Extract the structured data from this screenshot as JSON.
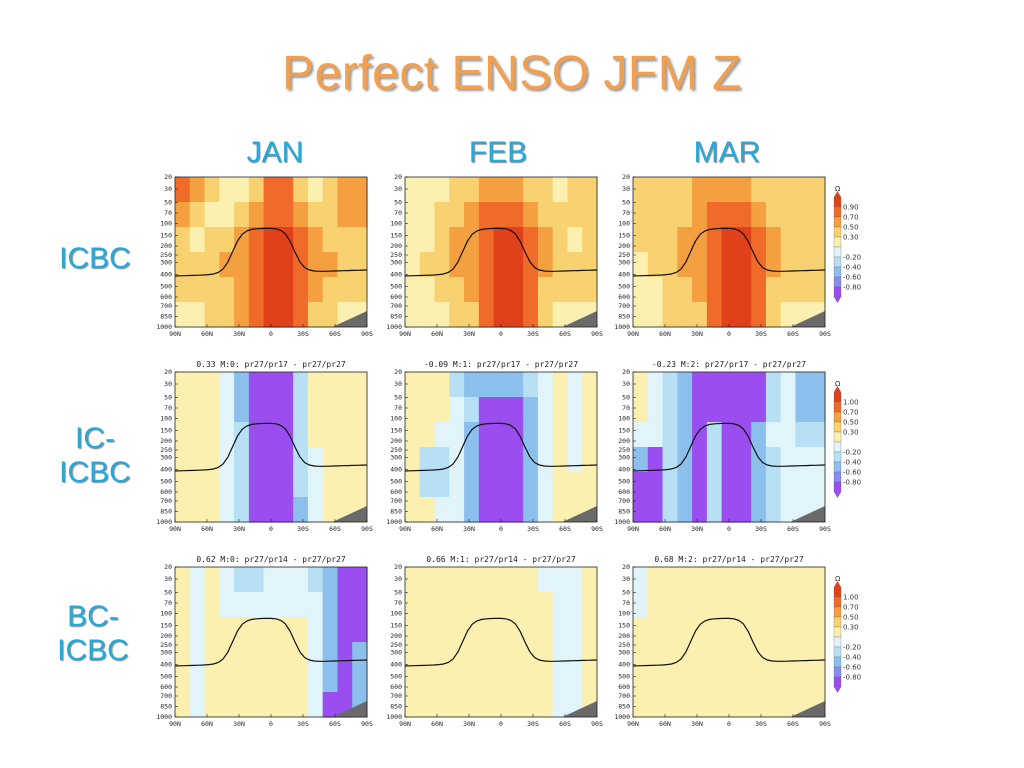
{
  "slide": {
    "title": "Perfect ENSO JFM Z",
    "title_color": "#f0a050",
    "label_color": "#22aadd"
  },
  "columns": [
    "JAN",
    "FEB",
    "MAR"
  ],
  "rows": [
    {
      "lines": [
        "ICBC"
      ]
    },
    {
      "lines": [
        "IC-",
        "ICBC"
      ]
    },
    {
      "lines": [
        "BC-",
        "ICBC"
      ]
    }
  ],
  "chart_data": {
    "type": "heatmap",
    "description_units": "pressure levels vs latitude",
    "y_ticks": [
      "20",
      "30",
      "50",
      "70",
      "100",
      "150",
      "200",
      "250",
      "300",
      "400",
      "500",
      "600",
      "700",
      "850",
      "1000"
    ],
    "x_ticks": [
      "90N",
      "60N",
      "30N",
      "0",
      "30S",
      "60S",
      "90S"
    ],
    "panel_titles": [
      [
        "",
        "",
        ""
      ],
      [
        "0.33 M:0: pr27/pr17 - pr27/pr27",
        "-0.09 M:1: pr27/pr17 - pr27/pr27",
        "-0.23 M:2: pr27/pr17 - pr27/pr27"
      ],
      [
        "0.62 M:0: pr27/pr14 - pr27/pr27",
        "0.66 M:1: pr27/pr14 - pr27/pr27",
        "0.68 M:2: pr27/pr14 - pr27/pr27"
      ]
    ],
    "colorbars": [
      {
        "unit": "Ω",
        "labels": [
          "0.90",
          "0.70",
          "0.50",
          "0.30",
          "-0.20",
          "-0.40",
          "-0.60",
          "-0.80"
        ]
      },
      {
        "unit": "Ω",
        "labels": [
          "1.00",
          "0.70",
          "0.50",
          "0.30",
          "-0.20",
          "-0.40",
          "-0.60",
          "-0.80"
        ]
      },
      {
        "unit": "Ω",
        "labels": [
          "1.00",
          "0.70",
          "0.50",
          "0.30",
          "-0.20",
          "-0.40",
          "-0.60",
          "-0.80"
        ]
      }
    ],
    "colorbar_colors": [
      "#e0401a",
      "#f06a2a",
      "#f5a040",
      "#f8d270",
      "#fbf0b0",
      "#e0f4fa",
      "#b8e0f4",
      "#8cc0ec",
      "#8a8af0",
      "#9a4ef0"
    ],
    "panel_fields": [
      [
        [
          [
            0.9,
            0.7,
            0.5,
            0.3,
            0.3,
            0.5,
            0.9,
            0.9,
            0.5,
            0.3,
            0.5,
            0.7,
            0.7
          ],
          [
            0.7,
            0.5,
            0.3,
            0.3,
            0.5,
            0.7,
            0.9,
            0.9,
            0.7,
            0.5,
            0.5,
            0.7,
            0.7
          ],
          [
            0.5,
            0.3,
            0.5,
            0.5,
            0.7,
            0.9,
            1.0,
            1.0,
            0.9,
            0.7,
            0.5,
            0.5,
            0.5
          ],
          [
            0.5,
            0.5,
            0.5,
            0.7,
            0.7,
            0.9,
            1.0,
            1.0,
            0.9,
            0.7,
            0.7,
            0.5,
            0.5
          ],
          [
            0.5,
            0.5,
            0.5,
            0.5,
            0.7,
            0.9,
            1.0,
            1.0,
            0.9,
            0.7,
            0.5,
            0.5,
            0.5
          ],
          [
            0.3,
            0.3,
            0.5,
            0.5,
            0.7,
            0.9,
            1.0,
            1.0,
            0.9,
            0.5,
            0.5,
            0.3,
            0.3
          ]
        ],
        [
          [
            0.3,
            0.3,
            0.3,
            0.5,
            0.5,
            0.7,
            0.7,
            0.7,
            0.5,
            0.5,
            0.3,
            0.5,
            0.5
          ],
          [
            0.3,
            0.3,
            0.5,
            0.5,
            0.7,
            0.9,
            0.9,
            0.9,
            0.7,
            0.5,
            0.5,
            0.5,
            0.5
          ],
          [
            0.3,
            0.3,
            0.5,
            0.7,
            0.7,
            0.9,
            1.0,
            1.0,
            0.9,
            0.7,
            0.5,
            0.3,
            0.5
          ],
          [
            0.3,
            0.5,
            0.5,
            0.7,
            0.7,
            0.9,
            1.0,
            1.0,
            0.9,
            0.7,
            0.5,
            0.5,
            0.5
          ],
          [
            0.3,
            0.3,
            0.5,
            0.5,
            0.7,
            0.9,
            1.0,
            1.0,
            0.9,
            0.5,
            0.5,
            0.5,
            0.5
          ],
          [
            0.3,
            0.3,
            0.3,
            0.5,
            0.5,
            0.9,
            1.0,
            1.0,
            0.9,
            0.5,
            0.3,
            0.3,
            0.3
          ]
        ],
        [
          [
            0.5,
            0.5,
            0.5,
            0.5,
            0.7,
            0.7,
            0.7,
            0.7,
            0.5,
            0.5,
            0.5,
            0.5,
            0.5
          ],
          [
            0.5,
            0.5,
            0.5,
            0.5,
            0.7,
            0.9,
            0.9,
            0.9,
            0.7,
            0.5,
            0.5,
            0.5,
            0.5
          ],
          [
            0.5,
            0.5,
            0.5,
            0.7,
            0.7,
            0.9,
            1.0,
            1.0,
            0.9,
            0.7,
            0.5,
            0.5,
            0.5
          ],
          [
            0.3,
            0.5,
            0.5,
            0.7,
            0.7,
            0.9,
            1.0,
            1.0,
            0.9,
            0.7,
            0.5,
            0.5,
            0.5
          ],
          [
            0.3,
            0.3,
            0.5,
            0.5,
            0.7,
            0.9,
            1.0,
            1.0,
            0.9,
            0.5,
            0.5,
            0.5,
            0.5
          ],
          [
            0.3,
            0.3,
            0.5,
            0.5,
            0.5,
            0.9,
            1.0,
            1.0,
            0.9,
            0.5,
            0.3,
            0.3,
            0.3
          ]
        ]
      ],
      [
        [
          [
            0.2,
            0.2,
            0.2,
            -0.2,
            -0.6,
            -0.9,
            -0.9,
            -0.9,
            -0.4,
            0.2,
            0.2,
            0.2,
            0.2
          ],
          [
            0.2,
            0.2,
            0.2,
            -0.2,
            -0.6,
            -0.9,
            -0.9,
            -0.9,
            -0.4,
            0.2,
            0.2,
            0.2,
            0.2
          ],
          [
            0.2,
            0.2,
            0.2,
            -0.2,
            -0.4,
            -0.9,
            -0.9,
            -0.9,
            -0.4,
            0.2,
            0.2,
            0.2,
            0.2
          ],
          [
            0.2,
            0.2,
            0.2,
            -0.2,
            -0.4,
            -0.9,
            -0.9,
            -0.9,
            -0.4,
            -0.2,
            0.2,
            0.2,
            0.2
          ],
          [
            0.2,
            0.2,
            0.2,
            -0.2,
            -0.4,
            -0.9,
            -0.9,
            -0.9,
            -0.4,
            -0.2,
            0.2,
            0.2,
            0.2
          ],
          [
            0.2,
            0.2,
            0.2,
            -0.2,
            -0.4,
            -0.9,
            -0.9,
            -0.9,
            -0.6,
            -0.2,
            0.2,
            0.2,
            0.2
          ]
        ],
        [
          [
            0.2,
            0.2,
            0.2,
            -0.4,
            -0.6,
            -0.6,
            -0.6,
            -0.6,
            -0.4,
            -0.2,
            0.2,
            -0.2,
            0.2
          ],
          [
            0.2,
            0.2,
            0.2,
            -0.2,
            -0.4,
            -0.9,
            -0.9,
            -0.9,
            -0.6,
            -0.2,
            0.2,
            -0.2,
            0.2
          ],
          [
            0.2,
            0.2,
            -0.2,
            -0.2,
            -0.6,
            -0.9,
            -0.9,
            -0.9,
            -0.6,
            -0.2,
            0.2,
            -0.2,
            0.2
          ],
          [
            0.2,
            -0.4,
            -0.4,
            -0.2,
            -0.6,
            -0.9,
            -0.9,
            -0.9,
            -0.6,
            -0.2,
            0.2,
            -0.2,
            0.2
          ],
          [
            0.2,
            -0.4,
            -0.4,
            -0.2,
            -0.6,
            -0.9,
            -0.9,
            -0.9,
            -0.6,
            -0.2,
            0.2,
            0.2,
            0.2
          ],
          [
            0.2,
            0.2,
            -0.2,
            -0.2,
            -0.6,
            -0.9,
            -0.9,
            -0.9,
            -0.6,
            -0.2,
            0.2,
            0.2,
            0.2
          ]
        ],
        [
          [
            0.2,
            -0.2,
            -0.4,
            -0.6,
            -0.9,
            -0.9,
            -0.9,
            -0.9,
            -0.9,
            -0.4,
            -0.2,
            -0.6,
            -0.6
          ],
          [
            0.2,
            -0.2,
            -0.4,
            -0.6,
            -0.9,
            -0.9,
            -0.9,
            -0.9,
            -0.9,
            -0.4,
            -0.2,
            -0.6,
            -0.6
          ],
          [
            -0.2,
            -0.2,
            -0.4,
            -0.6,
            -0.9,
            -0.4,
            -0.9,
            -0.9,
            -0.6,
            -0.2,
            -0.2,
            -0.4,
            -0.4
          ],
          [
            -0.6,
            -0.9,
            -0.4,
            -0.6,
            -0.9,
            -0.4,
            -0.9,
            -0.9,
            -0.6,
            -0.4,
            -0.2,
            -0.2,
            -0.2
          ],
          [
            -0.9,
            -0.9,
            -0.4,
            -0.6,
            -0.9,
            -0.4,
            -0.9,
            -0.9,
            -0.6,
            -0.4,
            -0.2,
            -0.2,
            -0.2
          ],
          [
            -0.9,
            -0.9,
            -0.4,
            -0.6,
            -0.9,
            -0.4,
            -0.9,
            -0.9,
            -0.6,
            -0.4,
            -0.2,
            -0.2,
            -0.2
          ]
        ]
      ],
      [
        [
          [
            0.2,
            -0.2,
            0.2,
            -0.2,
            -0.4,
            -0.4,
            -0.2,
            -0.2,
            -0.2,
            -0.4,
            -0.6,
            -0.9,
            -0.9
          ],
          [
            0.2,
            -0.2,
            0.2,
            -0.2,
            -0.2,
            -0.2,
            -0.2,
            -0.2,
            -0.2,
            -0.2,
            -0.6,
            -0.9,
            -0.9
          ],
          [
            0.2,
            -0.2,
            0.2,
            0.2,
            0.2,
            0.2,
            0.2,
            0.2,
            0.2,
            -0.2,
            -0.6,
            -0.9,
            -0.9
          ],
          [
            0.2,
            -0.2,
            0.2,
            0.2,
            0.2,
            0.2,
            0.2,
            0.2,
            0.2,
            -0.2,
            -0.6,
            -0.9,
            -0.6
          ],
          [
            0.2,
            -0.2,
            0.2,
            0.2,
            0.2,
            0.2,
            0.2,
            0.2,
            0.2,
            -0.2,
            -0.6,
            -0.9,
            -0.6
          ],
          [
            0.2,
            -0.2,
            0.2,
            0.2,
            0.2,
            0.2,
            0.2,
            0.2,
            0.2,
            -0.2,
            -0.9,
            -0.9,
            -0.6
          ]
        ],
        [
          [
            0.2,
            0.2,
            0.2,
            0.2,
            0.2,
            0.2,
            0.2,
            0.2,
            0.2,
            -0.2,
            -0.2,
            -0.2,
            0.2
          ],
          [
            0.2,
            0.2,
            0.2,
            0.2,
            0.2,
            0.2,
            0.2,
            0.2,
            0.2,
            0.2,
            -0.2,
            -0.2,
            0.2
          ],
          [
            0.2,
            0.2,
            0.2,
            0.2,
            0.2,
            0.2,
            0.2,
            0.2,
            0.2,
            0.2,
            -0.2,
            -0.2,
            0.2
          ],
          [
            0.2,
            0.2,
            0.2,
            0.2,
            0.2,
            0.2,
            0.2,
            0.2,
            0.2,
            0.2,
            -0.2,
            -0.2,
            0.2
          ],
          [
            0.2,
            0.2,
            0.2,
            0.2,
            0.2,
            0.2,
            0.2,
            0.2,
            0.2,
            0.2,
            -0.2,
            -0.2,
            0.2
          ],
          [
            0.2,
            0.2,
            0.2,
            0.2,
            0.2,
            0.2,
            0.2,
            0.2,
            0.2,
            0.2,
            -0.2,
            -0.2,
            0.2
          ]
        ],
        [
          [
            -0.2,
            0.2,
            0.2,
            0.2,
            0.2,
            0.2,
            0.2,
            0.2,
            0.2,
            0.2,
            0.2,
            0.2,
            0.2
          ],
          [
            -0.2,
            0.2,
            0.2,
            0.2,
            0.2,
            0.2,
            0.2,
            0.2,
            0.2,
            0.2,
            0.2,
            0.2,
            0.2
          ],
          [
            0.2,
            0.2,
            0.2,
            0.2,
            0.2,
            0.2,
            0.2,
            0.2,
            0.2,
            0.2,
            0.2,
            0.2,
            0.2
          ],
          [
            0.2,
            0.2,
            0.2,
            0.2,
            0.2,
            0.2,
            0.2,
            0.2,
            0.2,
            0.2,
            0.2,
            0.2,
            0.2
          ],
          [
            0.2,
            0.2,
            0.2,
            0.2,
            0.2,
            0.2,
            0.2,
            0.2,
            0.2,
            0.2,
            0.2,
            0.2,
            0.2
          ],
          [
            0.2,
            0.2,
            0.2,
            0.2,
            0.2,
            0.2,
            0.2,
            0.2,
            0.2,
            0.2,
            0.2,
            0.2,
            0.2
          ]
        ]
      ]
    ]
  }
}
